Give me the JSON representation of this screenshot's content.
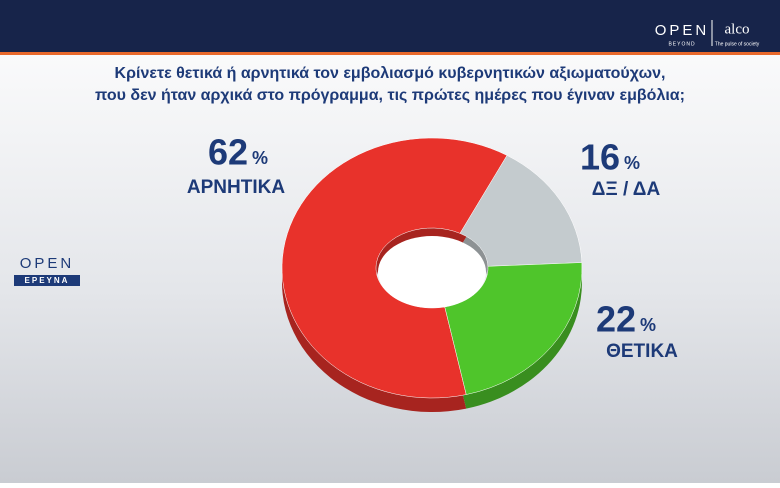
{
  "header": {
    "brand": "OPEN",
    "brand_sub": "BEYOND",
    "partner": "alco",
    "partner_sub": "The pulse of society"
  },
  "side_logo": {
    "brand": "OPEN",
    "sub": "ΕΡΕΥΝΑ"
  },
  "chart_data": {
    "type": "donut",
    "title": [
      "Κρίνετε θετικά ή αρνητικά τον εμβολιασμό κυβερνητικών αξιωματούχων,",
      "που δεν ήταν αρχικά στο πρόγραμμα, τις πρώτες ημέρες που έγιναν εμβόλια;"
    ],
    "categories": [
      "ΑΡΝΗΤΙΚΑ",
      "ΔΞ / ΔΑ",
      "ΘΕΤΙΚΑ"
    ],
    "values": [
      62,
      16,
      22
    ],
    "unit": "%",
    "colors": [
      "#e8322b",
      "#c4cbce",
      "#4fc52b"
    ]
  }
}
